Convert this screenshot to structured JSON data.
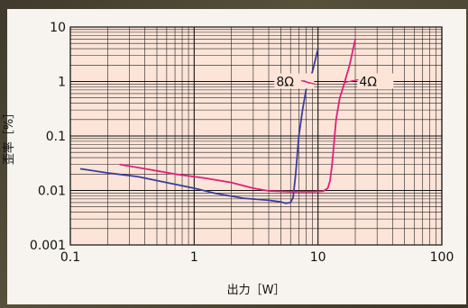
{
  "chart_data": {
    "type": "line",
    "title": "",
    "xlabel": "出力［W］",
    "ylabel": "歪率［%］",
    "xscale": "log",
    "yscale": "log",
    "xlim": [
      0.1,
      100
    ],
    "ylim": [
      0.001,
      10
    ],
    "x_tick_labels": [
      "0.1",
      "1",
      "10",
      "100"
    ],
    "y_tick_labels": [
      "0.001",
      "0.01",
      "0.1",
      "1",
      "10"
    ],
    "grid": true,
    "series": [
      {
        "name": "8Ω",
        "color": "#3a3d9c",
        "points": [
          [
            0.12,
            0.025
          ],
          [
            0.2,
            0.021
          ],
          [
            0.35,
            0.018
          ],
          [
            0.6,
            0.014
          ],
          [
            1,
            0.011
          ],
          [
            1.5,
            0.0088
          ],
          [
            2.5,
            0.0072
          ],
          [
            4,
            0.0066
          ],
          [
            5,
            0.0062
          ],
          [
            5.5,
            0.0058
          ],
          [
            6,
            0.006
          ],
          [
            6.3,
            0.0075
          ],
          [
            6.6,
            0.02
          ],
          [
            7,
            0.1
          ],
          [
            7.5,
            0.3
          ],
          [
            8,
            0.7
          ],
          [
            9,
            1.5
          ],
          [
            10,
            4
          ]
        ]
      },
      {
        "name": "4Ω",
        "color": "#e0207a",
        "points": [
          [
            0.25,
            0.03
          ],
          [
            0.4,
            0.025
          ],
          [
            0.7,
            0.02
          ],
          [
            1.2,
            0.017
          ],
          [
            2,
            0.014
          ],
          [
            3,
            0.011
          ],
          [
            4,
            0.0098
          ],
          [
            6,
            0.0095
          ],
          [
            9,
            0.0095
          ],
          [
            11,
            0.0097
          ],
          [
            12,
            0.011
          ],
          [
            12.5,
            0.015
          ],
          [
            13,
            0.03
          ],
          [
            13.5,
            0.08
          ],
          [
            14,
            0.2
          ],
          [
            15,
            0.5
          ],
          [
            16,
            0.8
          ],
          [
            18,
            2
          ],
          [
            20,
            6
          ]
        ]
      }
    ],
    "annotations": [
      {
        "text": "8Ω",
        "series": "8Ω"
      },
      {
        "text": "4Ω",
        "series": "4Ω"
      }
    ]
  }
}
